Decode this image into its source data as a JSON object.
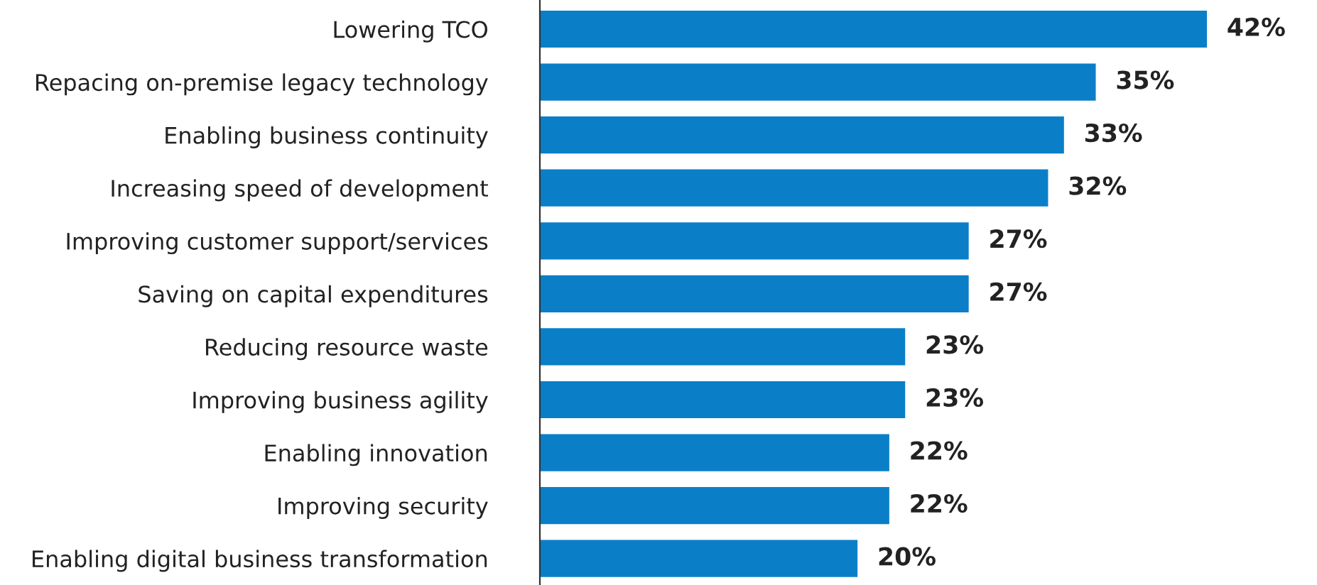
{
  "chart_data": {
    "type": "bar",
    "orientation": "horizontal",
    "categories": [
      "Lowering TCO",
      "Repacing on-premise legacy technology",
      "Enabling business continuity",
      "Increasing speed of development",
      "Improving customer support/services",
      "Saving on capital expenditures",
      "Reducing resource waste",
      "Improving business agility",
      "Enabling innovation",
      "Improving security",
      "Enabling digital business transformation"
    ],
    "values": [
      42,
      35,
      33,
      32,
      27,
      27,
      23,
      23,
      22,
      22,
      20
    ],
    "value_labels": [
      "42%",
      "35%",
      "33%",
      "32%",
      "27%",
      "27%",
      "23%",
      "23%",
      "22%",
      "22%",
      "20%"
    ],
    "color": "#0a7fc8",
    "grid": false,
    "legend": false
  }
}
